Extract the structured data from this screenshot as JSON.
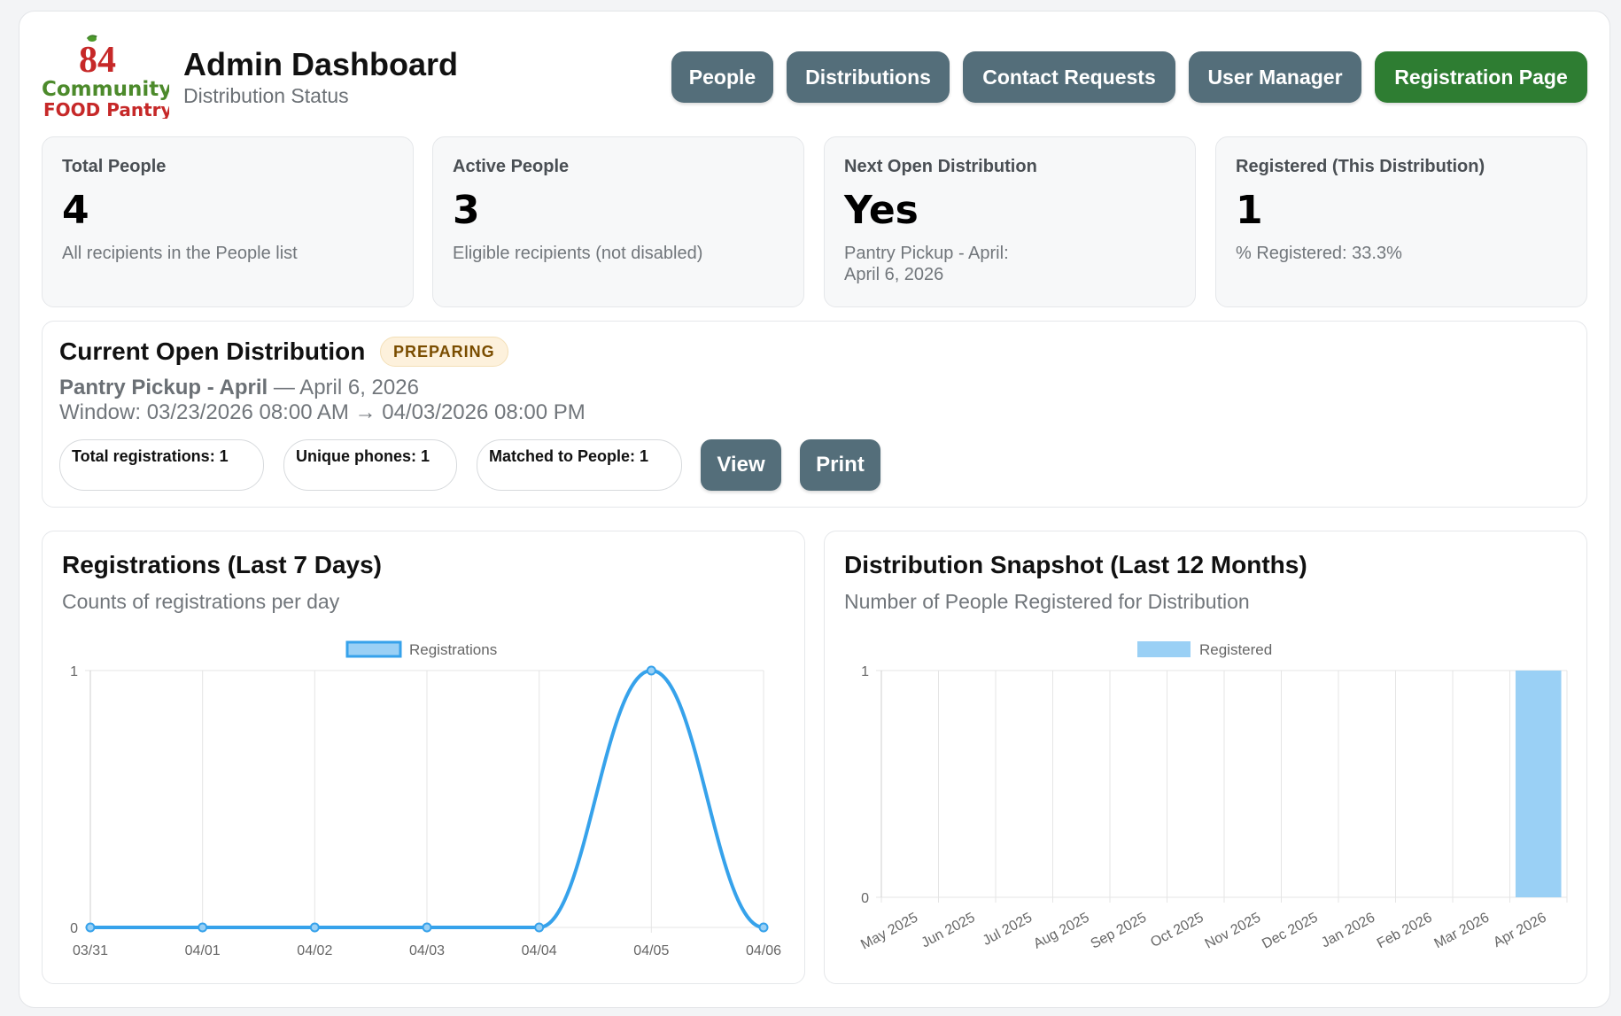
{
  "header": {
    "logo_text": {
      "number": "84",
      "line1": "Community",
      "line2": "FOOD Pantry"
    },
    "title": "Admin Dashboard",
    "subtitle": "Distribution Status"
  },
  "nav": [
    {
      "label": "People"
    },
    {
      "label": "Distributions"
    },
    {
      "label": "Contact Requests"
    },
    {
      "label": "User Manager"
    },
    {
      "label": "Registration Page"
    }
  ],
  "stats": [
    {
      "label": "Total People",
      "value": "4",
      "sub": "All recipients in the People list"
    },
    {
      "label": "Active People",
      "value": "3",
      "sub": "Eligible recipients (not disabled)"
    },
    {
      "label": "Next Open Distribution",
      "value": "Yes",
      "sub": "Pantry Pickup - April:",
      "sub2": "April 6, 2026"
    },
    {
      "label": "Registered (This Distribution)",
      "value": "1",
      "sub": "% Registered: 33.3%"
    }
  ],
  "current": {
    "heading": "Current Open Distribution",
    "badge": "PREPARING",
    "name": "Pantry Pickup - April",
    "date": " — April 6, 2026",
    "window": "Window: 03/23/2026 08:00 AM → 04/03/2026 08:00 PM",
    "pills": [
      "Total registrations: 1",
      "Unique phones: 1",
      "Matched to People: 1"
    ],
    "view_label": "View",
    "print_label": "Print"
  },
  "panels": {
    "left": {
      "title": "Registrations (Last 7 Days)",
      "subtitle": "Counts of registrations per day"
    },
    "right": {
      "title": "Distribution Snapshot (Last 12 Months)",
      "subtitle": "Number of People Registered for Distribution"
    }
  },
  "colors": {
    "nav": "#546e7a",
    "nav_green": "#2e7d32",
    "line": "#36a2eb",
    "bar": "#9ad0f5"
  },
  "chart_data": [
    {
      "type": "line",
      "legend": "Registrations",
      "categories": [
        "03/31",
        "04/01",
        "04/02",
        "04/03",
        "04/04",
        "04/05",
        "04/06"
      ],
      "series": [
        {
          "name": "Registrations",
          "values": [
            0,
            0,
            0,
            0,
            0,
            1,
            0
          ]
        }
      ],
      "ylim": [
        0,
        1
      ],
      "yticks": [
        "0",
        "1"
      ],
      "grid": true,
      "legend_position": "top"
    },
    {
      "type": "bar",
      "legend": "Registered",
      "categories": [
        "May 2025",
        "Jun 2025",
        "Jul 2025",
        "Aug 2025",
        "Sep 2025",
        "Oct 2025",
        "Nov 2025",
        "Dec 2025",
        "Jan 2026",
        "Feb 2026",
        "Mar 2026",
        "Apr 2026"
      ],
      "series": [
        {
          "name": "Registered",
          "values": [
            0,
            0,
            0,
            0,
            0,
            0,
            0,
            0,
            0,
            0,
            0,
            1
          ]
        }
      ],
      "ylim": [
        0,
        1
      ],
      "yticks": [
        "0",
        "1"
      ],
      "grid": true,
      "legend_position": "top"
    }
  ]
}
